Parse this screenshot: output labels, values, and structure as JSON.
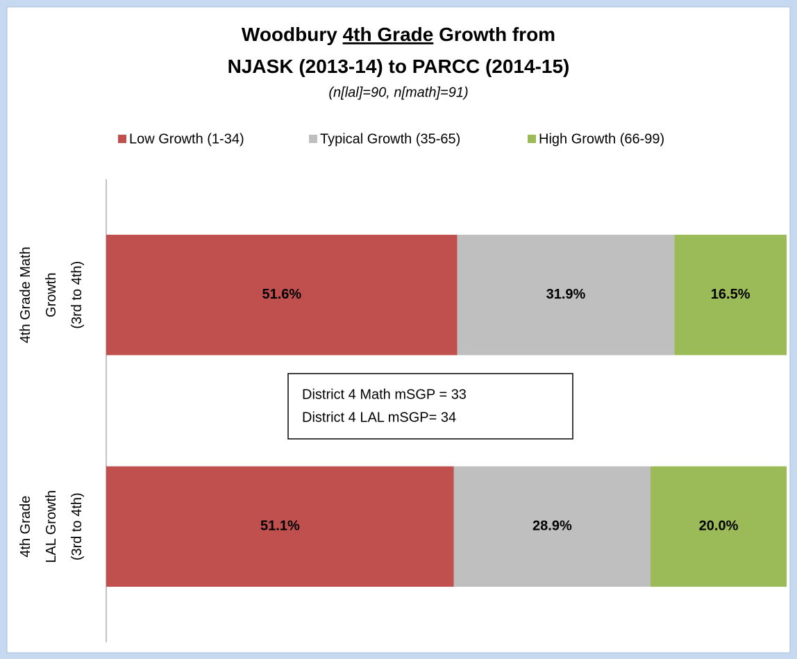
{
  "chart_data": {
    "type": "stacked_barh",
    "title": [
      [
        "Woodbury ",
        "4th Grade",
        " Growth from"
      ],
      [
        "NJASK (2013-14) to PARCC (2014-15)"
      ]
    ],
    "subtitle": "(n[lal]=90, n[math]=91)",
    "categories": [
      "4th Grade Math\nGrowth\n(3rd to 4th)",
      "4th Grade\nLAL Growth\n(3rd to 4th)"
    ],
    "series": [
      {
        "name": "Low Growth (1-34)",
        "color": "#c0504d",
        "values": [
          51.6,
          51.1
        ],
        "value_labels": [
          "51.6%",
          "51.1%"
        ]
      },
      {
        "name": "Typical Growth (35-65)",
        "color": "#bfbfbf",
        "values": [
          31.9,
          28.9
        ],
        "value_labels": [
          "31.9%",
          "28.9%"
        ]
      },
      {
        "name": "High Growth (66-99)",
        "color": "#9bbb59",
        "values": [
          16.5,
          20.0
        ],
        "value_labels": [
          "16.5%",
          "20.0%"
        ]
      }
    ],
    "xlim": [
      0,
      100
    ],
    "legend": "top",
    "annotations": [
      "District 4 Math mSGP = 33",
      "District 4 LAL mSGP= 34"
    ]
  }
}
